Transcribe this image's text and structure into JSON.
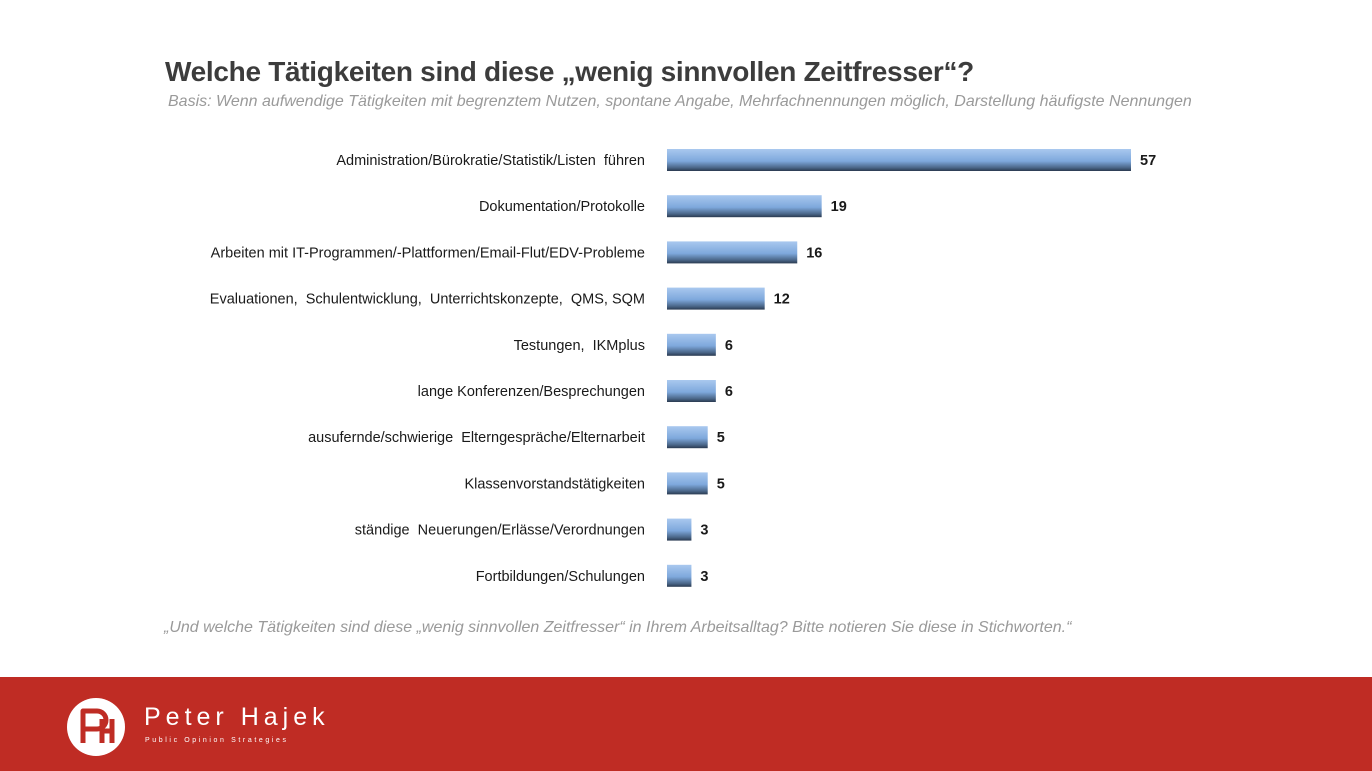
{
  "chart_data": {
    "type": "bar",
    "orientation": "horizontal",
    "title": "Welche Tätigkeiten sind diese „wenig sinnvollen Zeitfresser“?",
    "subtitle": "Basis: Wenn aufwendige Tätigkeiten mit begrenztem Nutzen, spontane Angabe, Mehrfachnennungen möglich, Darstellung häufigste Nennungen",
    "categories": [
      "Administration/Bürokratie/Statistik/Listen  führen",
      "Dokumentation/Protokolle",
      "Arbeiten mit IT-Programmen/-Plattformen/Email-Flut/EDV-Probleme",
      "Evaluationen,  Schulentwicklung,  Unterrichtskonzepte,  QMS, SQM",
      "Testungen,  IKMplus",
      "lange Konferenzen/Besprechungen",
      "ausufernde/schwierige  Elterngespräche/Elternarbeit",
      "Klassenvorstandstätigkeiten",
      "ständige  Neuerungen/Erlässe/Verordnungen",
      "Fortbildungen/Schulungen"
    ],
    "values": [
      57,
      19,
      16,
      12,
      6,
      6,
      5,
      5,
      3,
      3
    ],
    "xlim": [
      0,
      57
    ],
    "grid": false,
    "legend": "none",
    "bar_color": "#8db3e2"
  },
  "footnote": "„Und welche Tätigkeiten sind diese „wenig sinnvollen Zeitfresser“ in Ihrem Arbeitsalltag? Bitte notieren Sie diese in Stichworten.“",
  "footer": {
    "brand_name": "Peter Hajek",
    "brand_tagline": "Public Opinion Strategies",
    "background_color": "#bf2c24",
    "logo_icon": "ph-monogram-icon"
  }
}
